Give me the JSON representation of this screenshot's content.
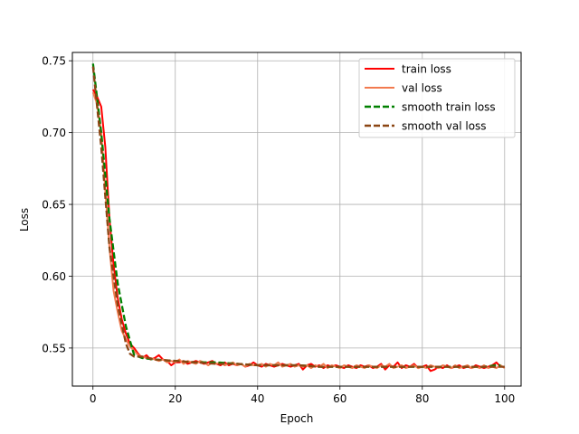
{
  "chart_data": {
    "type": "line",
    "xlabel": "Epoch",
    "ylabel": "Loss",
    "xlim": [
      -5,
      104
    ],
    "ylim": [
      0.5235,
      0.7558
    ],
    "xticks": [
      0,
      20,
      40,
      60,
      80,
      100
    ],
    "yticks": [
      0.55,
      0.6,
      0.65,
      0.7,
      0.75
    ],
    "xtick_labels": [
      "0",
      "20",
      "40",
      "60",
      "80",
      "100"
    ],
    "ytick_labels": [
      "0.55",
      "0.60",
      "0.65",
      "0.70",
      "0.75"
    ],
    "grid": true,
    "legend_position": "top-right",
    "series": [
      {
        "name": "train loss",
        "color": "#ff0000",
        "dash": "solid",
        "x": [
          0,
          1,
          2,
          3,
          4,
          5,
          6,
          7,
          8,
          9,
          10,
          11,
          12,
          13,
          14,
          15,
          16,
          17,
          18,
          19,
          20,
          21,
          22,
          23,
          24,
          25,
          26,
          27,
          28,
          29,
          30,
          31,
          32,
          33,
          34,
          35,
          36,
          37,
          38,
          39,
          40,
          41,
          42,
          43,
          44,
          45,
          46,
          47,
          48,
          49,
          50,
          51,
          52,
          53,
          54,
          55,
          56,
          57,
          58,
          59,
          60,
          61,
          62,
          63,
          64,
          65,
          66,
          67,
          68,
          69,
          70,
          71,
          72,
          73,
          74,
          75,
          76,
          77,
          78,
          79,
          80,
          81,
          82,
          83,
          84,
          85,
          86,
          87,
          88,
          89,
          90,
          91,
          92,
          93,
          94,
          95,
          96,
          97,
          98,
          99
        ],
        "values": [
          0.73,
          0.725,
          0.718,
          0.69,
          0.64,
          0.608,
          0.585,
          0.57,
          0.56,
          0.553,
          0.55,
          0.546,
          0.543,
          0.545,
          0.542,
          0.543,
          0.545,
          0.542,
          0.541,
          0.538,
          0.54,
          0.54,
          0.541,
          0.539,
          0.54,
          0.541,
          0.54,
          0.539,
          0.54,
          0.541,
          0.539,
          0.538,
          0.54,
          0.538,
          0.539,
          0.538,
          0.539,
          0.537,
          0.538,
          0.54,
          0.538,
          0.537,
          0.539,
          0.538,
          0.537,
          0.538,
          0.539,
          0.538,
          0.537,
          0.538,
          0.539,
          0.535,
          0.538,
          0.539,
          0.537,
          0.538,
          0.536,
          0.538,
          0.537,
          0.538,
          0.537,
          0.536,
          0.538,
          0.537,
          0.536,
          0.538,
          0.537,
          0.538,
          0.536,
          0.537,
          0.539,
          0.535,
          0.538,
          0.537,
          0.54,
          0.536,
          0.538,
          0.537,
          0.539,
          0.536,
          0.537,
          0.538,
          0.534,
          0.535,
          0.537,
          0.536,
          0.538,
          0.536,
          0.537,
          0.538,
          0.536,
          0.537,
          0.536,
          0.538,
          0.537,
          0.536,
          0.537,
          0.538,
          0.54,
          0.537
        ]
      },
      {
        "name": "val loss",
        "color": "#f27a4f",
        "dash": "solid",
        "x": [
          0,
          1,
          2,
          3,
          4,
          5,
          6,
          7,
          8,
          9,
          10,
          11,
          12,
          13,
          14,
          15,
          16,
          17,
          18,
          19,
          20,
          21,
          22,
          23,
          24,
          25,
          26,
          27,
          28,
          29,
          30,
          31,
          32,
          33,
          34,
          35,
          36,
          37,
          38,
          39,
          40,
          41,
          42,
          43,
          44,
          45,
          46,
          47,
          48,
          49,
          50,
          51,
          52,
          53,
          54,
          55,
          56,
          57,
          58,
          59,
          60,
          61,
          62,
          63,
          64,
          65,
          66,
          67,
          68,
          69,
          70,
          71,
          72,
          73,
          74,
          75,
          76,
          77,
          78,
          79,
          80,
          81,
          82,
          83,
          84,
          85,
          86,
          87,
          88,
          89,
          90,
          91,
          92,
          93,
          94,
          95,
          96,
          97,
          98,
          99,
          100
        ],
        "values": [
          0.728,
          0.72,
          0.7,
          0.66,
          0.62,
          0.59,
          0.575,
          0.562,
          0.556,
          0.551,
          0.548,
          0.545,
          0.544,
          0.543,
          0.543,
          0.542,
          0.541,
          0.542,
          0.54,
          0.541,
          0.54,
          0.542,
          0.539,
          0.541,
          0.54,
          0.539,
          0.541,
          0.54,
          0.538,
          0.54,
          0.539,
          0.54,
          0.538,
          0.539,
          0.54,
          0.538,
          0.539,
          0.537,
          0.539,
          0.538,
          0.538,
          0.539,
          0.537,
          0.539,
          0.538,
          0.54,
          0.537,
          0.538,
          0.539,
          0.537,
          0.538,
          0.537,
          0.538,
          0.536,
          0.538,
          0.537,
          0.539,
          0.536,
          0.538,
          0.537,
          0.536,
          0.538,
          0.537,
          0.536,
          0.538,
          0.537,
          0.536,
          0.538,
          0.537,
          0.536,
          0.538,
          0.537,
          0.539,
          0.536,
          0.537,
          0.538,
          0.536,
          0.537,
          0.538,
          0.536,
          0.537,
          0.536,
          0.538,
          0.537,
          0.536,
          0.538,
          0.537,
          0.536,
          0.538,
          0.536,
          0.537,
          0.538,
          0.536,
          0.537,
          0.536,
          0.538,
          0.536,
          0.537,
          0.536,
          0.538,
          0.536
        ]
      },
      {
        "name": "smooth train loss",
        "color": "#008000",
        "dash": "dashed",
        "x": [
          0,
          2,
          4,
          6,
          8,
          10,
          12,
          15,
          20,
          25,
          30,
          35,
          40,
          45,
          50,
          55,
          60,
          65,
          70,
          75,
          80,
          85,
          90,
          95,
          98,
          99
        ],
        "values": [
          0.748,
          0.7,
          0.64,
          0.595,
          0.565,
          0.545,
          0.543,
          0.542,
          0.541,
          0.54,
          0.54,
          0.539,
          0.538,
          0.538,
          0.538,
          0.537,
          0.537,
          0.537,
          0.537,
          0.537,
          0.537,
          0.537,
          0.537,
          0.537,
          0.538,
          0.538
        ]
      },
      {
        "name": "smooth val loss",
        "color": "#8b4513",
        "dash": "dashed",
        "x": [
          0,
          2,
          4,
          6,
          8,
          9,
          10,
          12,
          15,
          20,
          25,
          30,
          35,
          40,
          45,
          50,
          55,
          60,
          65,
          70,
          75,
          80,
          85,
          90,
          95,
          100
        ],
        "values": [
          0.746,
          0.69,
          0.62,
          0.58,
          0.553,
          0.546,
          0.544,
          0.544,
          0.542,
          0.541,
          0.54,
          0.539,
          0.539,
          0.538,
          0.538,
          0.538,
          0.537,
          0.537,
          0.537,
          0.537,
          0.537,
          0.537,
          0.537,
          0.537,
          0.537,
          0.537
        ]
      }
    ]
  }
}
